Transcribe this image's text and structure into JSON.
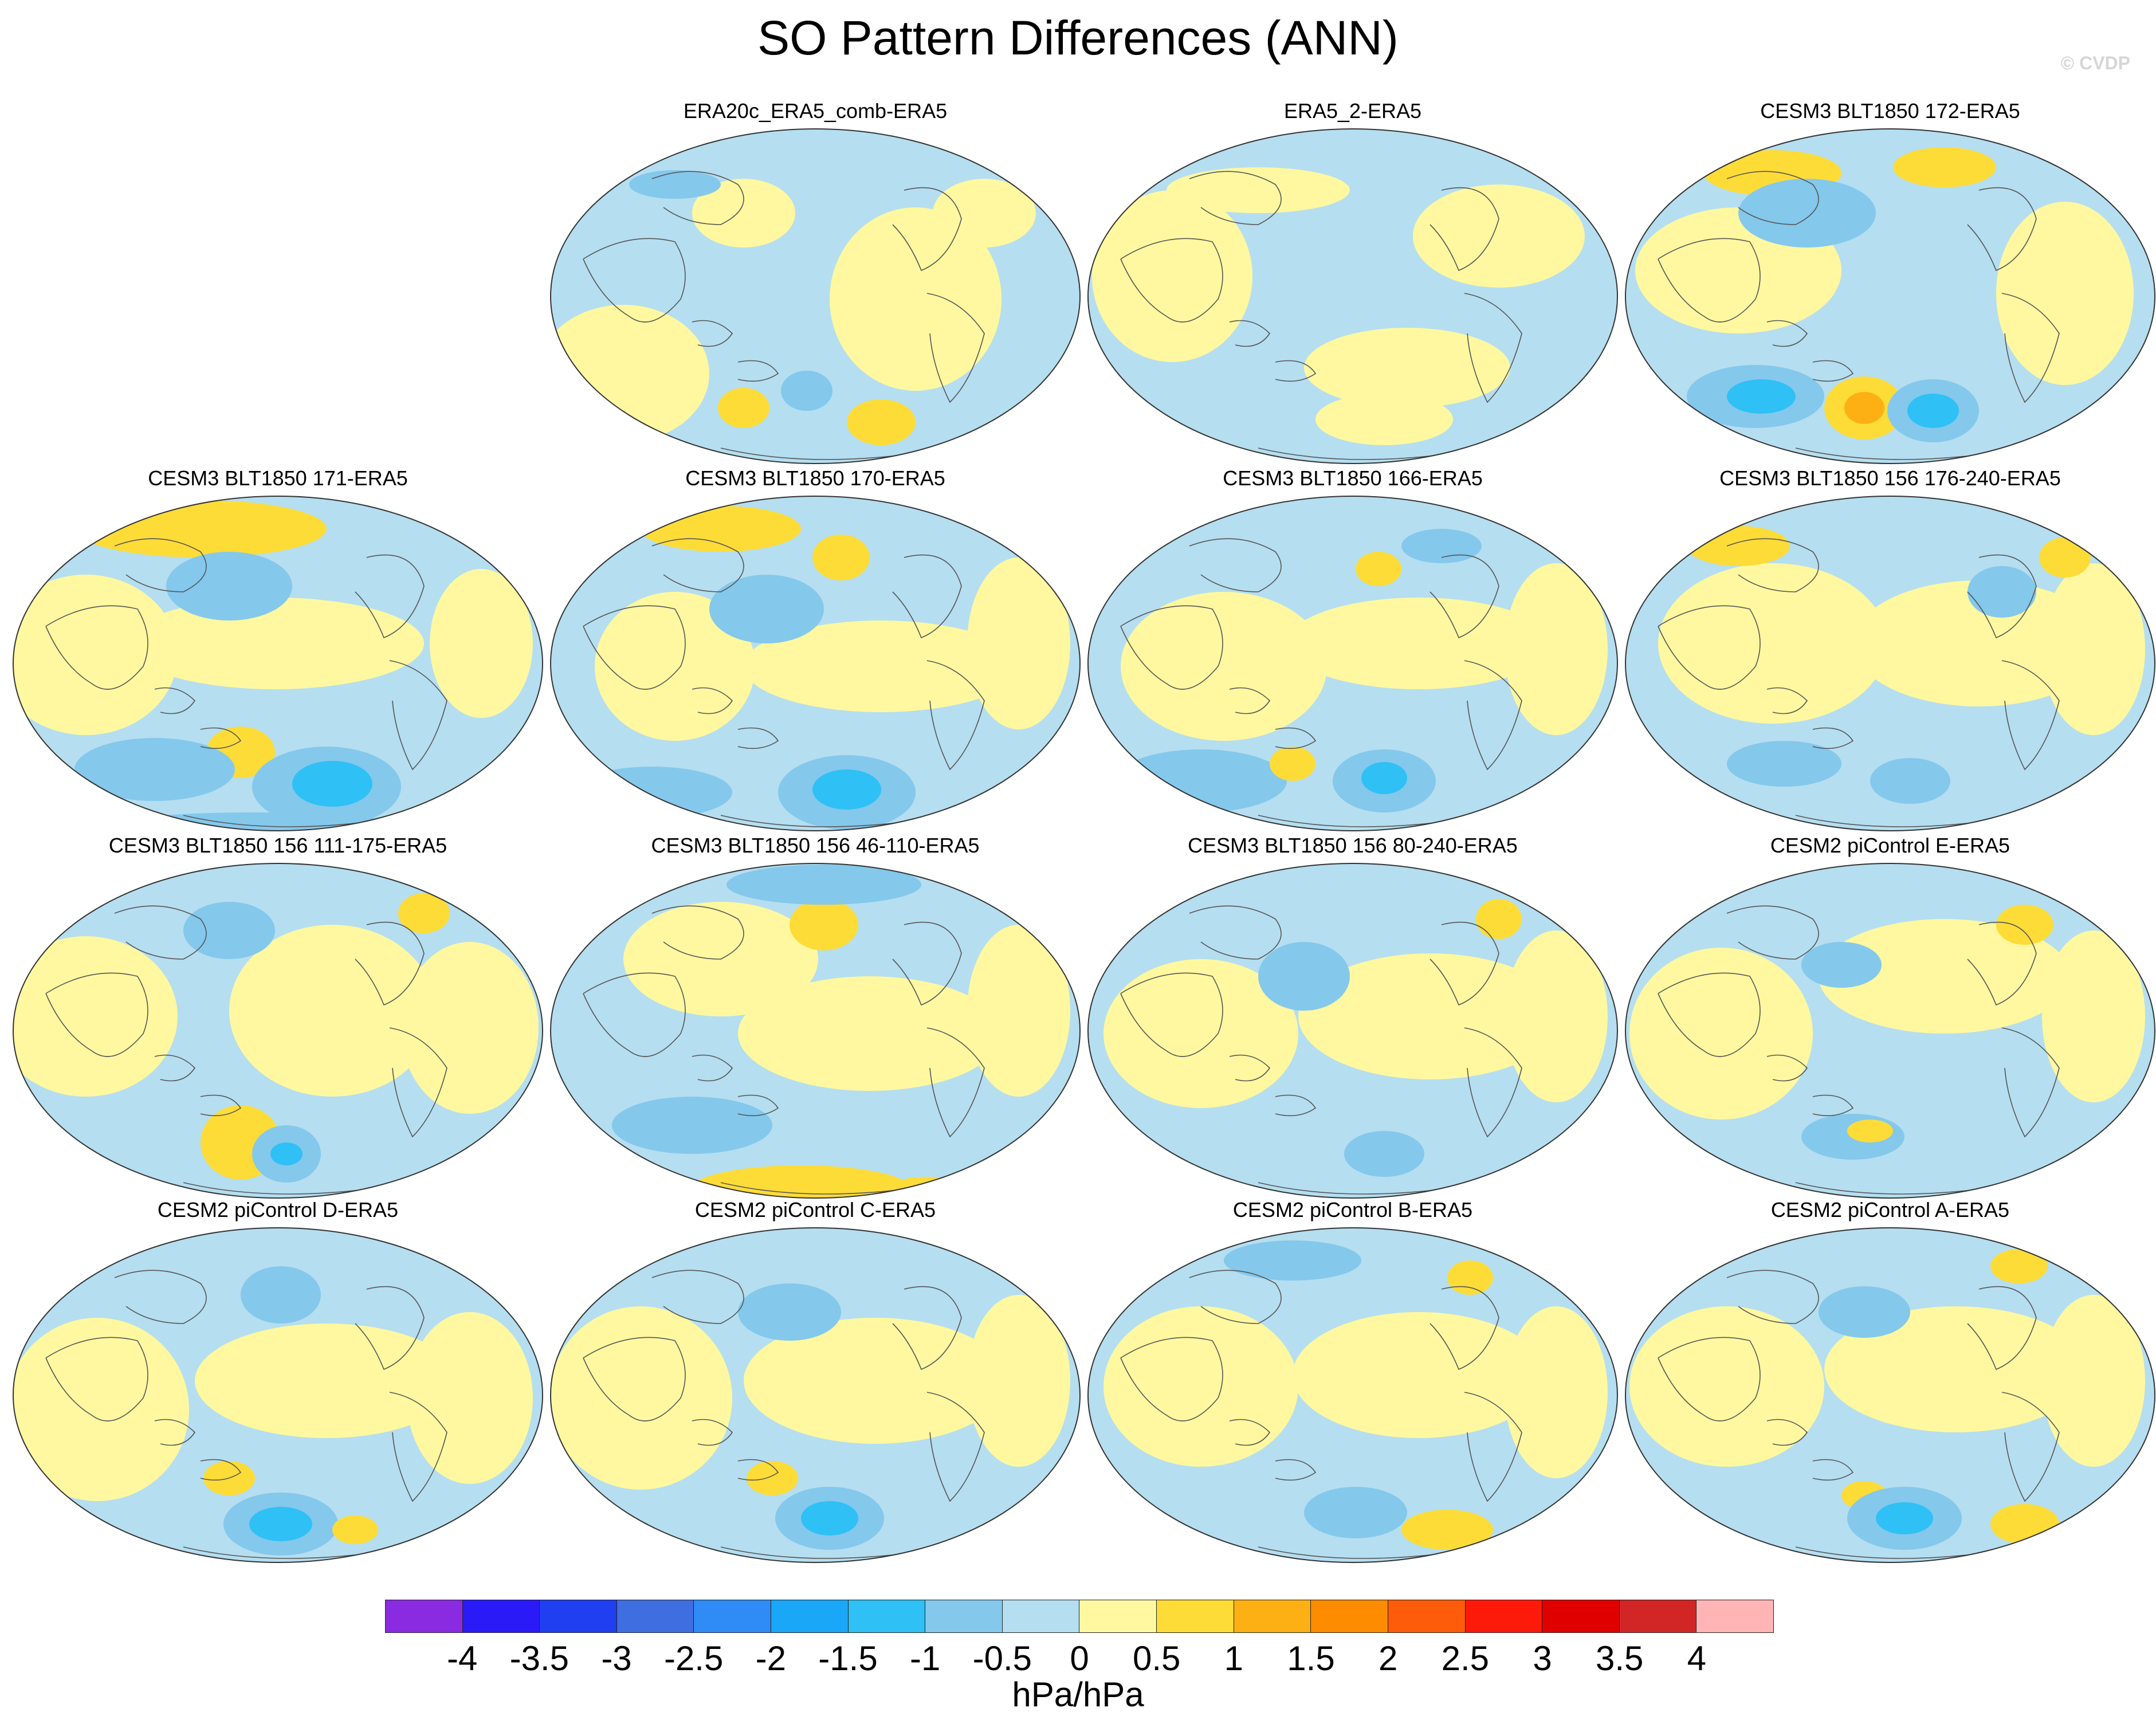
{
  "header": {
    "title": "SO Pattern Differences (ANN)",
    "credit": "© CVDP"
  },
  "panels": [
    {
      "title": "ERA20c_ERA5_comb-ERA5"
    },
    {
      "title": "ERA5_2-ERA5"
    },
    {
      "title": "CESM3 BLT1850 172-ERA5"
    },
    {
      "title": "CESM3 BLT1850 171-ERA5"
    },
    {
      "title": "CESM3 BLT1850 170-ERA5"
    },
    {
      "title": "CESM3 BLT1850 166-ERA5"
    },
    {
      "title": "CESM3 BLT1850 156 176-240-ERA5"
    },
    {
      "title": "CESM3 BLT1850 156 111-175-ERA5"
    },
    {
      "title": "CESM3 BLT1850 156 46-110-ERA5"
    },
    {
      "title": "CESM3 BLT1850 156 80-240-ERA5"
    },
    {
      "title": "CESM2 piControl E-ERA5"
    },
    {
      "title": "CESM2 piControl D-ERA5"
    },
    {
      "title": "CESM2 piControl C-ERA5"
    },
    {
      "title": "CESM2 piControl B-ERA5"
    },
    {
      "title": "CESM2 piControl A-ERA5"
    }
  ],
  "colorbar": {
    "colors": [
      "#8a2be2",
      "#2a1af7",
      "#1f3ff0",
      "#3f6ee0",
      "#2f8bf5",
      "#1aa7f7",
      "#2fc0f5",
      "#84c8ec",
      "#b5def0",
      "#fff8a0",
      "#fddc38",
      "#fdb014",
      "#fd8c00",
      "#fd5c0a",
      "#fd1a0a",
      "#e00000",
      "#d22626",
      "#ffb5b5"
    ],
    "ticks": [
      "-4",
      "-3.5",
      "-3",
      "-2.5",
      "-2",
      "-1.5",
      "-1",
      "-0.5",
      "0",
      "0.5",
      "1",
      "1.5",
      "2",
      "2.5",
      "3",
      "3.5",
      "4"
    ],
    "units": "hPa/hPa"
  }
}
